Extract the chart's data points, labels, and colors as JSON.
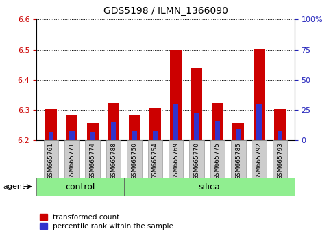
{
  "title": "GDS5198 / ILMN_1366090",
  "samples": [
    "GSM665761",
    "GSM665771",
    "GSM665774",
    "GSM665788",
    "GSM665750",
    "GSM665754",
    "GSM665769",
    "GSM665770",
    "GSM665775",
    "GSM665785",
    "GSM665792",
    "GSM665793"
  ],
  "groups": [
    "control",
    "control",
    "control",
    "control",
    "silica",
    "silica",
    "silica",
    "silica",
    "silica",
    "silica",
    "silica",
    "silica"
  ],
  "transformed_count": [
    6.305,
    6.285,
    6.258,
    6.322,
    6.285,
    6.308,
    6.5,
    6.44,
    6.325,
    6.258,
    6.502,
    6.305
  ],
  "percentile_rank": [
    7,
    8,
    7,
    15,
    8,
    8,
    30,
    22,
    16,
    10,
    30,
    8
  ],
  "ylim_left": [
    6.2,
    6.6
  ],
  "ylim_right": [
    0,
    100
  ],
  "yticks_left": [
    6.2,
    6.3,
    6.4,
    6.5,
    6.6
  ],
  "yticks_right": [
    0,
    25,
    50,
    75,
    100
  ],
  "ytick_labels_right": [
    "0",
    "25",
    "50",
    "75",
    "100%"
  ],
  "bar_color_red": "#cc0000",
  "bar_color_blue": "#3333cc",
  "background_plot": "#ffffff",
  "background_xlabel": "#cccccc",
  "background_group": "#90ee90",
  "grid_color": "#000000",
  "bar_bottom": 6.2,
  "bar_width": 0.55,
  "blue_bar_width": 0.25,
  "ylabel_left_color": "#cc0000",
  "ylabel_right_color": "#2222bb",
  "agent_label": "agent",
  "control_label": "control",
  "silica_label": "silica",
  "legend_red_label": "transformed count",
  "legend_blue_label": "percentile rank within the sample",
  "n_control": 4,
  "n_silica": 8
}
